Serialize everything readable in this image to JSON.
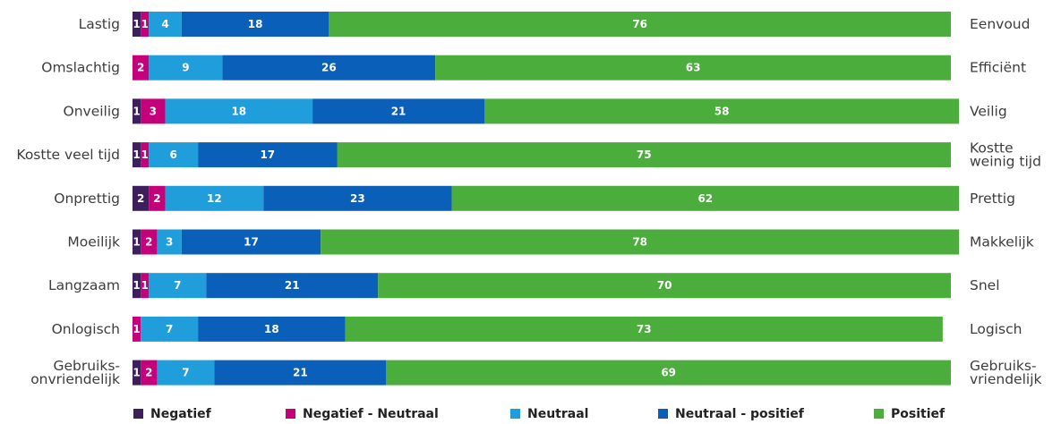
{
  "chart_data": {
    "type": "bar",
    "orientation": "horizontal",
    "stacked": true,
    "grid": false,
    "legend_position": "bottom",
    "xlim": [
      0,
      100
    ],
    "categories": [
      {
        "left": [
          "Lastig"
        ],
        "right": [
          "Eenvoud"
        ]
      },
      {
        "left": [
          "Omslachtig"
        ],
        "right": [
          "Efficiënt"
        ]
      },
      {
        "left": [
          "Onveilig"
        ],
        "right": [
          "Veilig"
        ]
      },
      {
        "left": [
          "Kostte veel tijd"
        ],
        "right": [
          "Kostte",
          "weinig tijd"
        ]
      },
      {
        "left": [
          "Onprettig"
        ],
        "right": [
          "Prettig"
        ]
      },
      {
        "left": [
          "Moeilijk"
        ],
        "right": [
          "Makkelijk"
        ]
      },
      {
        "left": [
          "Langzaam"
        ],
        "right": [
          "Snel"
        ]
      },
      {
        "left": [
          "Onlogisch"
        ],
        "right": [
          "Logisch"
        ]
      },
      {
        "left": [
          "Gebruiks-",
          "onvriendelijk"
        ],
        "right": [
          "Gebruiks-",
          "vriendelijk"
        ]
      }
    ],
    "series": [
      {
        "name": "Negatief",
        "color": "#3d1f5e",
        "values": [
          1,
          0,
          1,
          1,
          2,
          1,
          1,
          0,
          1
        ]
      },
      {
        "name": "Negatief - Neutraal",
        "color": "#c4007a",
        "values": [
          1,
          2,
          3,
          1,
          2,
          2,
          1,
          1,
          2
        ]
      },
      {
        "name": "Neutraal",
        "color": "#1f9edb",
        "values": [
          4,
          9,
          18,
          6,
          12,
          3,
          7,
          7,
          7
        ]
      },
      {
        "name": "Neutraal - positief",
        "color": "#0a60b8",
        "values": [
          18,
          26,
          21,
          17,
          23,
          17,
          21,
          18,
          21
        ]
      },
      {
        "name": "Positief",
        "color": "#4aad3c",
        "values": [
          76,
          63,
          58,
          75,
          62,
          78,
          70,
          73,
          69
        ]
      }
    ]
  }
}
